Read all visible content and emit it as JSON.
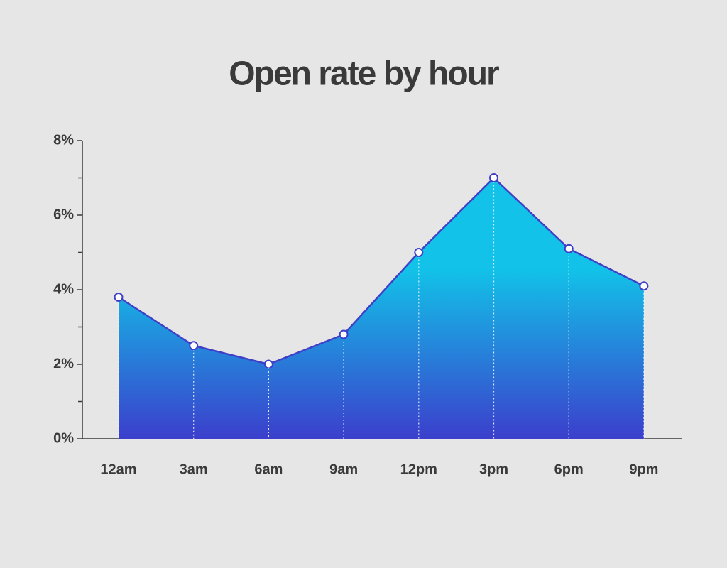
{
  "chart_data": {
    "type": "area",
    "title": "Open rate by hour",
    "categories": [
      "12am",
      "3am",
      "6am",
      "9am",
      "12pm",
      "3pm",
      "6pm",
      "9pm"
    ],
    "values": [
      3.8,
      2.5,
      2.0,
      2.8,
      5.0,
      7.0,
      5.1,
      4.1
    ],
    "ylim": [
      0,
      8
    ],
    "yticks": [
      {
        "value": 0,
        "label": "0%"
      },
      {
        "value": 2,
        "label": "2%"
      },
      {
        "value": 4,
        "label": "4%"
      },
      {
        "value": 6,
        "label": "6%"
      },
      {
        "value": 8,
        "label": "8%"
      }
    ],
    "minor_yticks": [
      1,
      3,
      5,
      7
    ],
    "line_color": "#3f3fc8",
    "gradient": [
      "#12c2e8",
      "#3b3fcc"
    ],
    "grid": false
  }
}
